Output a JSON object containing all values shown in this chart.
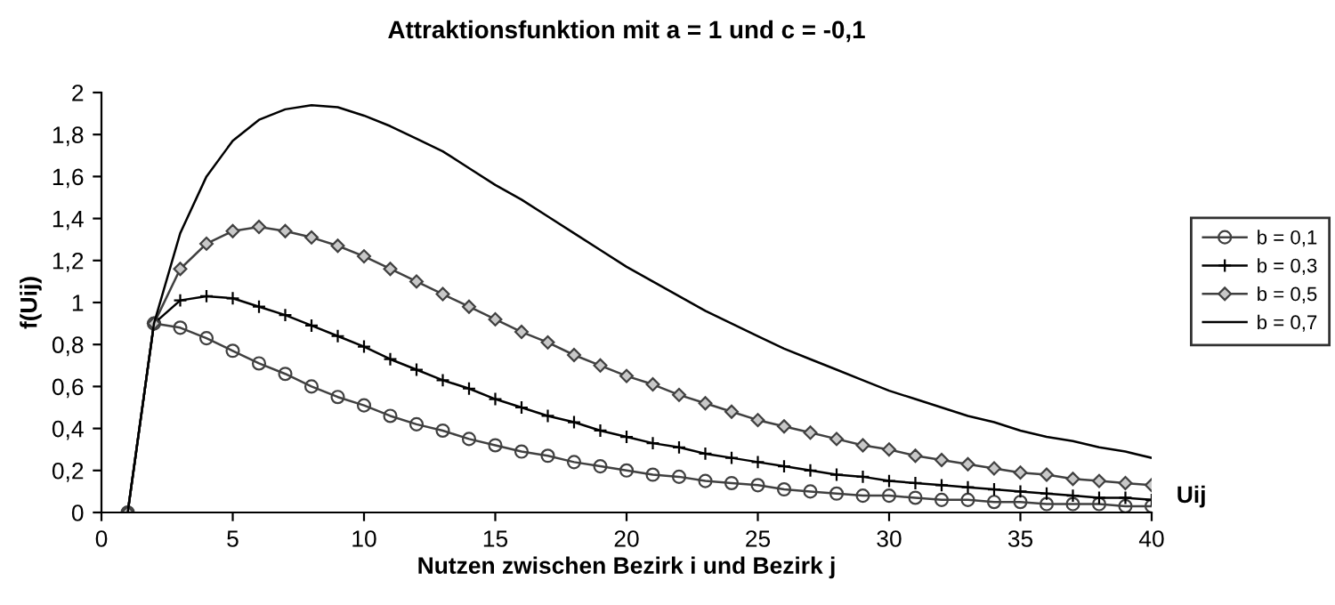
{
  "chart_data": {
    "type": "line",
    "title": "Attraktionsfunktion mit a = 1 und c = -0,1",
    "xlabel": "Nutzen zwischen Bezirk i und Bezirk j",
    "ylabel": "f(Uij)",
    "annotations": [
      "Uij"
    ],
    "x": [
      1,
      2,
      3,
      4,
      5,
      6,
      7,
      8,
      9,
      10,
      11,
      12,
      13,
      14,
      15,
      16,
      17,
      18,
      19,
      20,
      21,
      22,
      23,
      24,
      25,
      26,
      27,
      28,
      29,
      30,
      31,
      32,
      33,
      34,
      35,
      36,
      37,
      38,
      39,
      40
    ],
    "series": [
      {
        "name": "b = 0,1",
        "color": "#404040",
        "marker": "circle",
        "values": [
          0,
          0.9,
          0.88,
          0.83,
          0.77,
          0.71,
          0.66,
          0.6,
          0.55,
          0.51,
          0.46,
          0.42,
          0.39,
          0.35,
          0.32,
          0.29,
          0.27,
          0.24,
          0.22,
          0.2,
          0.18,
          0.17,
          0.15,
          0.14,
          0.13,
          0.11,
          0.1,
          0.09,
          0.08,
          0.08,
          0.07,
          0.06,
          0.06,
          0.05,
          0.05,
          0.04,
          0.04,
          0.04,
          0.03,
          0.03
        ]
      },
      {
        "name": "b = 0,3",
        "color": "#000000",
        "marker": "cross",
        "values": [
          0,
          0.9,
          1.01,
          1.03,
          1.02,
          0.98,
          0.94,
          0.89,
          0.84,
          0.79,
          0.73,
          0.68,
          0.63,
          0.59,
          0.54,
          0.5,
          0.46,
          0.43,
          0.39,
          0.36,
          0.33,
          0.31,
          0.28,
          0.26,
          0.24,
          0.22,
          0.2,
          0.18,
          0.17,
          0.15,
          0.14,
          0.13,
          0.12,
          0.11,
          0.1,
          0.09,
          0.08,
          0.07,
          0.07,
          0.06
        ]
      },
      {
        "name": "b = 0,5",
        "color": "#404040",
        "marker": "diamond",
        "values": [
          0,
          0.9,
          1.16,
          1.28,
          1.34,
          1.36,
          1.34,
          1.31,
          1.27,
          1.22,
          1.16,
          1.1,
          1.04,
          0.98,
          0.92,
          0.86,
          0.81,
          0.75,
          0.7,
          0.65,
          0.61,
          0.56,
          0.52,
          0.48,
          0.44,
          0.41,
          0.38,
          0.35,
          0.32,
          0.3,
          0.27,
          0.25,
          0.23,
          0.21,
          0.19,
          0.18,
          0.16,
          0.15,
          0.14,
          0.13
        ]
      },
      {
        "name": "b = 0,7",
        "color": "#000000",
        "marker": "none",
        "values": [
          0,
          0.9,
          1.33,
          1.6,
          1.77,
          1.87,
          1.92,
          1.94,
          1.93,
          1.89,
          1.84,
          1.78,
          1.72,
          1.64,
          1.56,
          1.49,
          1.41,
          1.33,
          1.25,
          1.17,
          1.1,
          1.03,
          0.96,
          0.9,
          0.84,
          0.78,
          0.73,
          0.68,
          0.63,
          0.58,
          0.54,
          0.5,
          0.46,
          0.43,
          0.39,
          0.36,
          0.34,
          0.31,
          0.29,
          0.26
        ]
      }
    ],
    "xlim": [
      0,
      40
    ],
    "xticks": [
      0,
      5,
      10,
      15,
      20,
      25,
      30,
      35,
      40
    ],
    "ylim": [
      0,
      2
    ],
    "yticks": [
      0,
      {
        "value": 0.2,
        "label": "0,2"
      },
      {
        "value": 0.4,
        "label": "0,4"
      },
      {
        "value": 0.6,
        "label": "0,6"
      },
      {
        "value": 0.8,
        "label": "0,8"
      },
      1,
      {
        "value": 1.2,
        "label": "1,2"
      },
      {
        "value": 1.4,
        "label": "1,4"
      },
      {
        "value": 1.6,
        "label": "1,6"
      },
      {
        "value": 1.8,
        "label": "1,8"
      },
      2
    ],
    "grid": false,
    "legend": "right",
    "line_style": "solid"
  }
}
